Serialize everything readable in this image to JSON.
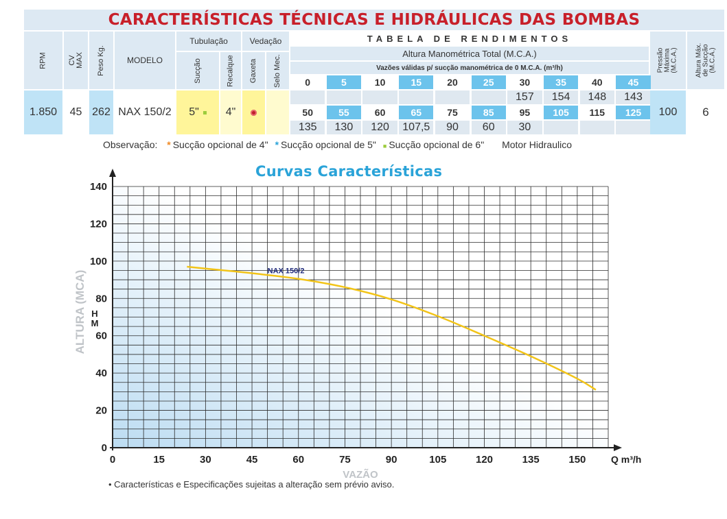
{
  "title": "CARACTERÍSTICAS TÉCNICAS E HIDRÁULICAS DAS BOMBAS",
  "table": {
    "headers": {
      "rpm": "RPM",
      "cv": "CV\nMAX",
      "peso": "Peso Kg.",
      "modelo": "MODELO",
      "tubulacao": "Tubulação",
      "succao": "Sucção",
      "recalque": "Recalque",
      "vedacao": "Vedação",
      "gaxeta": "Gaxeta",
      "selo": "Selo Mec.",
      "rendimento": "TABELA DE RENDIMENTOS",
      "altura": "Altura Manométrica Total (M.C.A.)",
      "vazoes": "Vazões válidas p/ sucção manométrica de 0 M.C.A. (m³/h)",
      "pressao": "Pressão\nMáxima\n(M.C.A.)",
      "altura_succao": "Altura Máx.\nde Sucção\n(M.C.A.)"
    },
    "row": {
      "rpm": "1.850",
      "cv": "45",
      "peso": "262",
      "modelo": "NAX 150/2",
      "succao": "5\"",
      "recalque": "4\"",
      "pressao": "100",
      "altura_succao": "6"
    },
    "heads_row1": [
      "0",
      "5",
      "10",
      "15",
      "20",
      "25",
      "30",
      "35",
      "40",
      "45"
    ],
    "flows_row1": [
      "",
      "",
      "",
      "",
      "",
      "",
      "157",
      "154",
      "148",
      "143"
    ],
    "heads_row2": [
      "50",
      "55",
      "60",
      "65",
      "75",
      "85",
      "95",
      "105",
      "115",
      "125"
    ],
    "flows_row2": [
      "135",
      "130",
      "120",
      "107,5",
      "90",
      "60",
      "30",
      "",
      "",
      ""
    ]
  },
  "observations": {
    "label": "Observação:",
    "items": [
      {
        "marker": "*",
        "text": "Sucção opcional de 4\"",
        "color": "#f08a24"
      },
      {
        "marker": "*",
        "text": "Sucção opcional de 5\"",
        "color": "#2aa3d8"
      },
      {
        "marker": "■",
        "text": "Sucção opcional de 6\"",
        "color": "#9ccc3c"
      }
    ],
    "motor": "Motor Hidraulico"
  },
  "chart_title": "Curvas Características",
  "chart_data": {
    "type": "line",
    "title": "Curvas Características",
    "xlabel": "VAZÃO",
    "xunit": "Q m³/h",
    "ylabel": "ALTURA (MCA)",
    "yunit": "H\nM",
    "xlim": [
      0,
      160
    ],
    "ylim": [
      0,
      140
    ],
    "x_ticks": [
      0,
      15,
      30,
      45,
      60,
      75,
      90,
      105,
      120,
      135,
      150
    ],
    "y_ticks": [
      0,
      20,
      40,
      60,
      80,
      100,
      120,
      140
    ],
    "grid": true,
    "series": [
      {
        "name": "NAX 150/2",
        "color": "#f2c418",
        "x": [
          24,
          30,
          45,
          60,
          75,
          90,
          105,
          120,
          135,
          150,
          156
        ],
        "y": [
          97,
          96,
          93.5,
          90.5,
          86,
          79.5,
          70.5,
          60,
          49,
          37,
          31
        ]
      }
    ]
  },
  "footnote": "• Características e Especificações sujeitas a alteração sem prévio aviso."
}
